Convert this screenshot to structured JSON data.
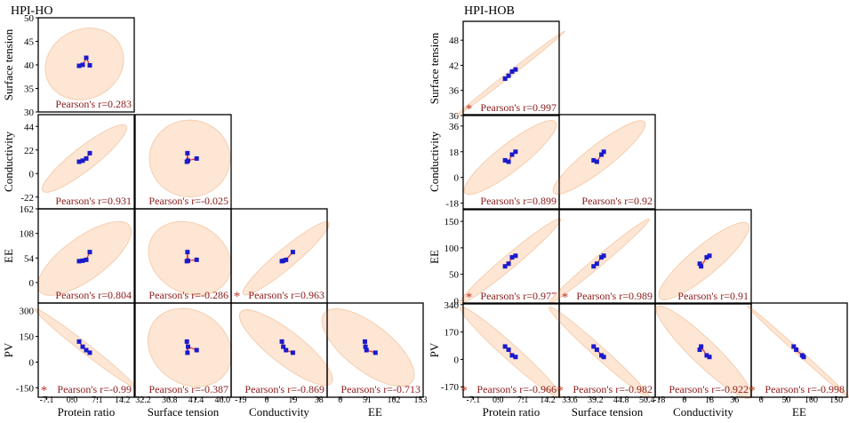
{
  "chart_data": [
    {
      "type": "scatter",
      "title": "HPI-HO",
      "variables": [
        "Protein ratio",
        "Surface tension",
        "Conductivity",
        "EE",
        "PV"
      ],
      "row_variables": [
        "Surface tension",
        "Conductivity",
        "EE",
        "PV"
      ],
      "col_variables": [
        "Protein ratio",
        "Surface tension",
        "Conductivity",
        "EE"
      ],
      "y_ticks": {
        "Surface tension": [
          30,
          35,
          40,
          45,
          50
        ],
        "Conductivity": [
          -22,
          0,
          22,
          44
        ],
        "EE": [
          0,
          54,
          108,
          162
        ],
        "PV": [
          -150,
          0,
          150,
          300
        ]
      },
      "y_ranges": {
        "Surface tension": [
          30,
          50
        ],
        "Conductivity": [
          -33,
          55
        ],
        "EE": [
          -45,
          162
        ],
        "PV": [
          -205,
          345
        ]
      },
      "x_ticks": {
        "Protein ratio": [
          "-7.1",
          "0.0",
          "7.1",
          "14.2"
        ],
        "Surface tension": [
          "32.2",
          "36.8",
          "41.4",
          "46.0"
        ],
        "Conductivity": [
          "-19",
          "0",
          "19",
          "38"
        ],
        "EE": [
          "0",
          "51",
          "102",
          "153"
        ]
      },
      "x_ranges": {
        "Protein ratio": [
          -9.5,
          17.5
        ],
        "Surface tension": [
          30.8,
          47.5
        ],
        "Conductivity": [
          -26,
          44
        ],
        "EE": [
          -25,
          158
        ]
      },
      "samples": {
        "Protein ratio": [
          2.0,
          3.0,
          4.0,
          5.0
        ],
        "Surface tension": [
          39.8,
          40.0,
          41.5,
          39.9
        ],
        "Conductivity": [
          11,
          12,
          14,
          19
        ],
        "EE": [
          47,
          48,
          50,
          67
        ],
        "PV": [
          120,
          90,
          70,
          55
        ]
      },
      "panels": [
        {
          "row": "Surface tension",
          "col": "Protein ratio",
          "r": "0.283",
          "significant": false,
          "ellipse": {
            "cx": 3.5,
            "cy": 40.2,
            "rx_frac": 0.42,
            "ry_frac": 0.36,
            "angle": -28
          }
        },
        {
          "row": "Conductivity",
          "col": "Protein ratio",
          "r": "0.931",
          "significant": false,
          "ellipse": {
            "cx": 3.5,
            "cy": 14,
            "rx_frac": 0.55,
            "ry_frac": 0.12,
            "angle": -38
          }
        },
        {
          "row": "Conductivity",
          "col": "Surface tension",
          "r": "-0.025",
          "significant": false,
          "ellipse": {
            "cx": 40.3,
            "cy": 14,
            "rx_frac": 0.42,
            "ry_frac": 0.4,
            "angle": 0
          }
        },
        {
          "row": "EE",
          "col": "Protein ratio",
          "r": "0.804",
          "significant": false,
          "ellipse": {
            "cx": 3.5,
            "cy": 53,
            "rx_frac": 0.58,
            "ry_frac": 0.22,
            "angle": -36
          }
        },
        {
          "row": "EE",
          "col": "Surface tension",
          "r": "-0.286",
          "significant": false,
          "ellipse": {
            "cx": 40.3,
            "cy": 53,
            "rx_frac": 0.45,
            "ry_frac": 0.36,
            "angle": 30
          }
        },
        {
          "row": "EE",
          "col": "Conductivity",
          "r": "0.963",
          "significant": true,
          "ellipse": {
            "cx": 14,
            "cy": 53,
            "rx_frac": 0.58,
            "ry_frac": 0.1,
            "angle": -40
          }
        },
        {
          "row": "PV",
          "col": "Protein ratio",
          "r": "-0.99",
          "significant": true,
          "ellipse": {
            "cx": 3.5,
            "cy": 85,
            "rx_frac": 0.66,
            "ry_frac": 0.05,
            "angle": 38
          }
        },
        {
          "row": "PV",
          "col": "Surface tension",
          "r": "-0.387",
          "significant": false,
          "ellipse": {
            "cx": 40.3,
            "cy": 85,
            "rx_frac": 0.46,
            "ry_frac": 0.38,
            "angle": 35
          }
        },
        {
          "row": "PV",
          "col": "Conductivity",
          "r": "-0.869",
          "significant": false,
          "ellipse": {
            "cx": 14,
            "cy": 85,
            "rx_frac": 0.6,
            "ry_frac": 0.17,
            "angle": 38
          }
        },
        {
          "row": "PV",
          "col": "EE",
          "r": "-0.713",
          "significant": false,
          "ellipse": {
            "cx": 53,
            "cy": 85,
            "rx_frac": 0.58,
            "ry_frac": 0.24,
            "angle": 38
          }
        }
      ]
    },
    {
      "type": "scatter",
      "title": "HPI-HOB",
      "variables": [
        "Protein ratio",
        "Surface tension",
        "Conductivity",
        "EE",
        "PV"
      ],
      "row_variables": [
        "Surface tension",
        "Conductivity",
        "EE",
        "PV"
      ],
      "col_variables": [
        "Protein ratio",
        "Surface tension",
        "Conductivity",
        "EE"
      ],
      "y_ticks": {
        "Surface tension": [
          30,
          36,
          42,
          48
        ],
        "Conductivity": [
          -18,
          0,
          18,
          36
        ],
        "EE": [
          0,
          50,
          100,
          150
        ],
        "PV": [
          -170,
          0,
          170,
          340
        ]
      },
      "y_ranges": {
        "Surface tension": [
          30,
          52.5
        ],
        "Conductivity": [
          -22,
          44
        ],
        "EE": [
          -6,
          172
        ],
        "PV": [
          -235,
          350
        ]
      },
      "x_ticks": {
        "Protein ratio": [
          "-7.1",
          "0.0",
          "7.1",
          "14.2"
        ],
        "Surface tension": [
          "33.6",
          "39.2",
          "44.8",
          "50.4"
        ],
        "Conductivity": [
          "-18",
          "0",
          "18",
          "36"
        ],
        "EE": [
          "0",
          "50",
          "100",
          "150"
        ]
      },
      "x_ranges": {
        "Protein ratio": [
          -10,
          17.5
        ],
        "Surface tension": [
          31.3,
          52.2
        ],
        "Conductivity": [
          -21,
          48
        ],
        "EE": [
          -20,
          172
        ]
      },
      "samples": {
        "Protein ratio": [
          2.0,
          3.0,
          4.0,
          5.0
        ],
        "Surface tension": [
          38.8,
          39.5,
          40.5,
          41.0
        ],
        "Conductivity": [
          12,
          11,
          16,
          18
        ],
        "EE": [
          65,
          70,
          82,
          85
        ],
        "PV": [
          80,
          60,
          25,
          15
        ]
      },
      "panels": [
        {
          "row": "Surface tension",
          "col": "Protein ratio",
          "r": "0.997",
          "significant": true,
          "ellipse": {
            "cx": 3.5,
            "cy": 40,
            "rx_frac": 0.72,
            "ry_frac": 0.025,
            "angle": -38
          }
        },
        {
          "row": "Conductivity",
          "col": "Protein ratio",
          "r": "0.899",
          "significant": false,
          "ellipse": {
            "cx": 3.5,
            "cy": 14,
            "rx_frac": 0.6,
            "ry_frac": 0.14,
            "angle": -38
          }
        },
        {
          "row": "Conductivity",
          "col": "Surface tension",
          "r": "0.92",
          "significant": false,
          "ellipse": {
            "cx": 40,
            "cy": 14,
            "rx_frac": 0.6,
            "ry_frac": 0.13,
            "angle": -38
          }
        },
        {
          "row": "EE",
          "col": "Protein ratio",
          "r": "0.977",
          "significant": true,
          "ellipse": {
            "cx": 3.5,
            "cy": 75,
            "rx_frac": 0.68,
            "ry_frac": 0.07,
            "angle": -40
          }
        },
        {
          "row": "EE",
          "col": "Surface tension",
          "r": "0.989",
          "significant": true,
          "ellipse": {
            "cx": 40,
            "cy": 75,
            "rx_frac": 0.68,
            "ry_frac": 0.05,
            "angle": -40
          }
        },
        {
          "row": "EE",
          "col": "Conductivity",
          "r": "0.91",
          "significant": false,
          "ellipse": {
            "cx": 14,
            "cy": 75,
            "rx_frac": 0.6,
            "ry_frac": 0.15,
            "angle": -40
          }
        },
        {
          "row": "PV",
          "col": "Protein ratio",
          "r": "-0.966",
          "significant": true,
          "ellipse": {
            "cx": 3.5,
            "cy": 45,
            "rx_frac": 0.7,
            "ry_frac": 0.08,
            "angle": 42
          }
        },
        {
          "row": "PV",
          "col": "Surface tension",
          "r": "-0.982",
          "significant": true,
          "ellipse": {
            "cx": 40,
            "cy": 45,
            "rx_frac": 0.7,
            "ry_frac": 0.06,
            "angle": 42
          }
        },
        {
          "row": "PV",
          "col": "Conductivity",
          "r": "-0.922",
          "significant": false,
          "ellipse": {
            "cx": 14,
            "cy": 45,
            "rx_frac": 0.68,
            "ry_frac": 0.13,
            "angle": 44
          }
        },
        {
          "row": "PV",
          "col": "EE",
          "r": "-0.998",
          "significant": true,
          "ellipse": {
            "cx": 75,
            "cy": 45,
            "rx_frac": 0.72,
            "ry_frac": 0.025,
            "angle": 42
          }
        }
      ]
    }
  ],
  "labels": {
    "pearson_prefix": "Pearson's r=",
    "significance_marker": "*"
  }
}
